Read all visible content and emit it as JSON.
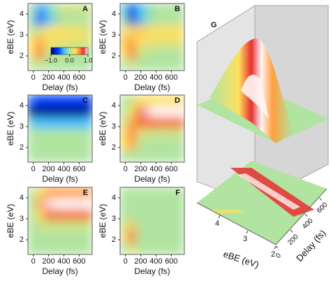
{
  "chart_data": [
    {
      "type": "heatmap",
      "panel": "A",
      "xlabel": "Delay (fs)",
      "ylabel": "eBE (eV)",
      "xlim": [
        -70,
        770
      ],
      "ylim": [
        1.3,
        4.5
      ],
      "xticks": [
        0,
        200,
        400,
        600
      ],
      "yticks": [
        2,
        3,
        4
      ],
      "x": [
        -17.5,
        87.5,
        192.5,
        297.5,
        402.5,
        507.5,
        612.5,
        717.5
      ],
      "y": [
        4.23,
        3.7,
        3.17,
        2.63,
        2.1,
        1.57
      ],
      "z": [
        [
          0,
          -0.4,
          -0.2,
          0,
          0.1,
          0.1,
          0.1,
          0.1
        ],
        [
          -0.1,
          -0.6,
          -0.3,
          -0.1,
          0,
          0,
          0,
          0
        ],
        [
          0.1,
          0.1,
          0.3,
          0.3,
          0.3,
          0.25,
          0.25,
          0.2
        ],
        [
          0.3,
          0.5,
          0.3,
          0.2,
          0.2,
          0.2,
          0.2,
          0.15
        ],
        [
          0.3,
          0.6,
          0.1,
          0.05,
          0.05,
          0.05,
          0,
          0
        ],
        [
          0,
          0.1,
          0,
          0,
          0,
          0,
          0,
          0
        ]
      ],
      "colormap": [
        [
          -1,
          "#00007f"
        ],
        [
          -0.6,
          "#0040ff"
        ],
        [
          -0.3,
          "#40c0ff"
        ],
        [
          0,
          "#b0e4a0"
        ],
        [
          0.3,
          "#ffe060"
        ],
        [
          0.5,
          "#ffa040"
        ],
        [
          0.75,
          "#e83030"
        ],
        [
          1,
          "#fff5f5"
        ]
      ],
      "colorbar_ticks": [
        {
          "value": -1,
          "label": "−1.0"
        },
        {
          "value": 0,
          "label": "0.0"
        },
        {
          "value": 1,
          "label": "1.0"
        }
      ]
    },
    {
      "type": "heatmap",
      "panel": "B",
      "xlabel": "Delay (fs)",
      "ylabel": "eBE (eV)",
      "xlim": [
        -70,
        770
      ],
      "ylim": [
        1.3,
        4.5
      ],
      "xticks": [
        0,
        200,
        400,
        600
      ],
      "yticks": [
        2,
        3,
        4
      ],
      "x": [
        -17.5,
        87.5,
        192.5,
        297.5,
        402.5,
        507.5,
        612.5,
        717.5
      ],
      "y": [
        4.23,
        3.7,
        3.17,
        2.63,
        2.1,
        1.57
      ],
      "z": [
        [
          -0.2,
          -0.7,
          -0.3,
          -0.1,
          0,
          0,
          0,
          0
        ],
        [
          -0.1,
          -0.8,
          -0.3,
          -0.1,
          0,
          0,
          0,
          0
        ],
        [
          0.2,
          0.3,
          0.4,
          0.3,
          0.3,
          0.3,
          0.3,
          0.3
        ],
        [
          0.4,
          0.5,
          0.3,
          0.2,
          0.2,
          0.2,
          0.2,
          0.2
        ],
        [
          0.3,
          0.6,
          0.1,
          0.05,
          0,
          0,
          0,
          0
        ],
        [
          0,
          0.1,
          0,
          0,
          0,
          0,
          0,
          0
        ]
      ]
    },
    {
      "type": "heatmap",
      "panel": "C",
      "xlabel": "Delay (fs)",
      "ylabel": "eBE (eV)",
      "xlim": [
        -70,
        770
      ],
      "ylim": [
        1.3,
        4.5
      ],
      "xticks": [
        0,
        200,
        400,
        600
      ],
      "yticks": [
        2,
        3,
        4
      ],
      "x": [
        -17.5,
        87.5,
        192.5,
        297.5,
        402.5,
        507.5,
        612.5,
        717.5
      ],
      "y": [
        4.23,
        3.7,
        3.17,
        2.63,
        2.1,
        1.57
      ],
      "z": [
        [
          -0.5,
          -0.6,
          -0.6,
          -0.6,
          -0.6,
          -0.6,
          -0.6,
          -0.6
        ],
        [
          -1,
          -1,
          -1,
          -1,
          -1,
          -1,
          -1,
          -1
        ],
        [
          -0.2,
          -0.3,
          -0.3,
          -0.3,
          -0.3,
          -0.3,
          -0.3,
          -0.3
        ],
        [
          0,
          0,
          0,
          0,
          0,
          0,
          0,
          0
        ],
        [
          0,
          0,
          0,
          0,
          0,
          0,
          0,
          0
        ],
        [
          0,
          0,
          0,
          0,
          0,
          0,
          0,
          0
        ]
      ]
    },
    {
      "type": "heatmap",
      "panel": "D",
      "xlabel": "Delay (fs)",
      "ylabel": "eBE (eV)",
      "xlim": [
        -70,
        770
      ],
      "ylim": [
        1.3,
        4.5
      ],
      "xticks": [
        0,
        200,
        400,
        600
      ],
      "yticks": [
        2,
        3,
        4
      ],
      "x": [
        -17.5,
        87.5,
        192.5,
        297.5,
        402.5,
        507.5,
        612.5,
        717.5
      ],
      "y": [
        4.23,
        3.7,
        3.17,
        2.63,
        2.1,
        1.57
      ],
      "z": [
        [
          0,
          0.1,
          0.3,
          0.3,
          0.3,
          0.3,
          0.3,
          0.3
        ],
        [
          0,
          0.3,
          0.8,
          0.95,
          1,
          1,
          1,
          1
        ],
        [
          0.1,
          0.5,
          0.6,
          0.6,
          0.6,
          0.6,
          0.6,
          0.6
        ],
        [
          0.3,
          0.6,
          0.2,
          0.1,
          0.1,
          0.1,
          0.1,
          0.1
        ],
        [
          0.3,
          0.5,
          0.05,
          0,
          0,
          0,
          0,
          0
        ],
        [
          0,
          0,
          0,
          0,
          0,
          0,
          0,
          0
        ]
      ]
    },
    {
      "type": "heatmap",
      "panel": "E",
      "xlabel": "Delay (fs)",
      "ylabel": "eBE (eV)",
      "xlim": [
        -70,
        770
      ],
      "ylim": [
        1.3,
        4.5
      ],
      "xticks": [
        0,
        200,
        400,
        600
      ],
      "yticks": [
        2,
        3,
        4
      ],
      "x": [
        -17.5,
        87.5,
        192.5,
        297.5,
        402.5,
        507.5,
        612.5,
        717.5
      ],
      "y": [
        4.23,
        3.7,
        3.17,
        2.63,
        2.1,
        1.57
      ],
      "z": [
        [
          0,
          0.3,
          0.5,
          0.5,
          0.5,
          0.5,
          0.5,
          0.5
        ],
        [
          0,
          0.5,
          0.95,
          1,
          1,
          1,
          1,
          1
        ],
        [
          0,
          0.3,
          0.6,
          0.6,
          0.6,
          0.6,
          0.6,
          0.6
        ],
        [
          0,
          0.1,
          0.1,
          0.1,
          0.1,
          0.1,
          0.1,
          0.1
        ],
        [
          0,
          0,
          0,
          0,
          0,
          0,
          0,
          0
        ],
        [
          0,
          0,
          0,
          0,
          0,
          0,
          0,
          0
        ]
      ]
    },
    {
      "type": "heatmap",
      "panel": "F",
      "xlabel": "Delay (fs)",
      "ylabel": "eBE (eV)",
      "xlim": [
        -70,
        770
      ],
      "ylim": [
        1.3,
        4.5
      ],
      "xticks": [
        0,
        200,
        400,
        600
      ],
      "yticks": [
        2,
        3,
        4
      ],
      "x": [
        -17.5,
        87.5,
        192.5,
        297.5,
        402.5,
        507.5,
        612.5,
        717.5
      ],
      "y": [
        4.23,
        3.7,
        3.17,
        2.63,
        2.1,
        1.57
      ],
      "z": [
        [
          0,
          0,
          0,
          0,
          0,
          0,
          0,
          0
        ],
        [
          0,
          0,
          0,
          0,
          0,
          0,
          0,
          0
        ],
        [
          0,
          0,
          0,
          0,
          0,
          0,
          0,
          0
        ],
        [
          0.1,
          0.4,
          0,
          0,
          0,
          0,
          0,
          0
        ],
        [
          0.2,
          0.6,
          0,
          0,
          0,
          0,
          0,
          0
        ],
        [
          0,
          0.2,
          0,
          0,
          0,
          0,
          0,
          0
        ]
      ]
    },
    {
      "type": "surface",
      "panel": "G",
      "xlabel": "Delay (fs)",
      "ylabel": "eBE (eV)",
      "xlim": [
        0,
        700
      ],
      "ylim": [
        1.5,
        4.8
      ],
      "xticks": [
        0,
        200,
        400,
        600
      ],
      "yticks": [
        2,
        3,
        4
      ]
    }
  ]
}
